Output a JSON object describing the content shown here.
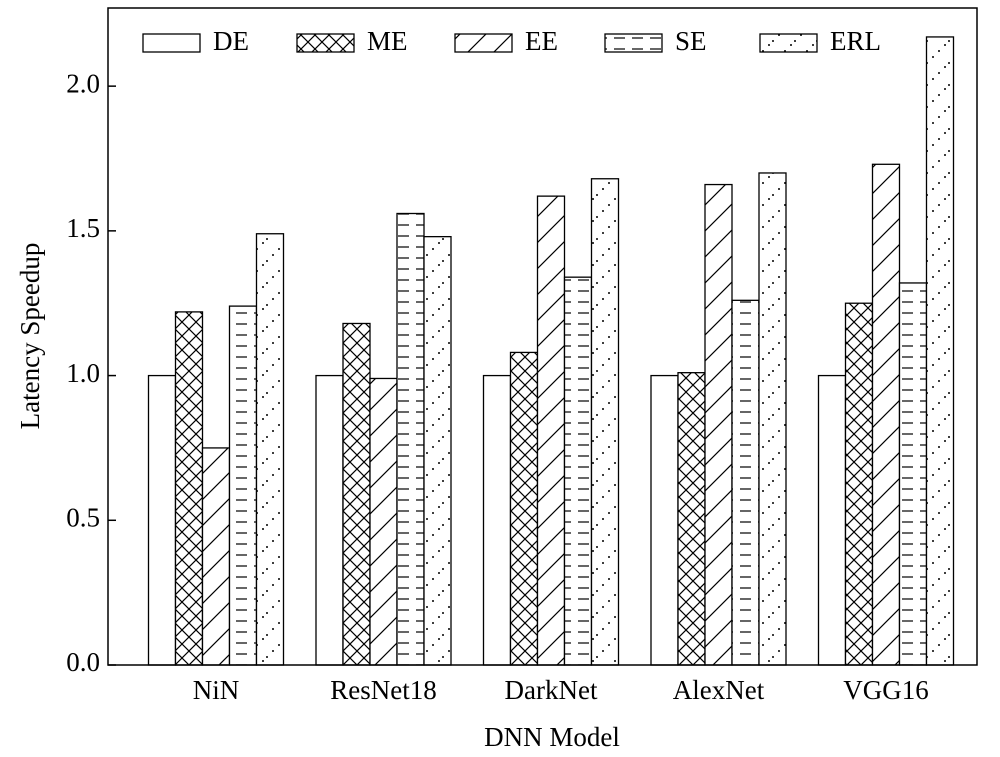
{
  "chart_data": {
    "type": "bar",
    "x_label": "DNN Model",
    "y_label": "Latency Speedup",
    "categories": [
      "NiN",
      "ResNet18",
      "DarkNet",
      "AlexNet",
      "VGG16"
    ],
    "series": [
      {
        "name": "DE",
        "color": "#000000",
        "hatch": "none",
        "values": [
          1.0,
          1.0,
          1.0,
          1.0,
          1.0
        ]
      },
      {
        "name": "ME",
        "color": "#000000",
        "hatch": "cross",
        "values": [
          1.22,
          1.18,
          1.08,
          1.01,
          1.25
        ]
      },
      {
        "name": "EE",
        "color": "#000000",
        "hatch": "diag",
        "values": [
          0.75,
          0.99,
          1.62,
          1.66,
          1.73
        ]
      },
      {
        "name": "SE",
        "color": "#000000",
        "hatch": "dash",
        "values": [
          1.24,
          1.56,
          1.34,
          1.26,
          1.32
        ]
      },
      {
        "name": "ERL",
        "color": "#000000",
        "hatch": "dot",
        "values": [
          1.49,
          1.48,
          1.68,
          1.7,
          2.17
        ]
      }
    ],
    "ylim": [
      0,
      2.27
    ],
    "yticks": [
      {
        "value": 0,
        "label": "0.0"
      },
      0.5,
      {
        "value": 1,
        "label": "1.0"
      },
      1.5,
      {
        "value": 2,
        "label": "2.0"
      }
    ],
    "legend": "top"
  }
}
